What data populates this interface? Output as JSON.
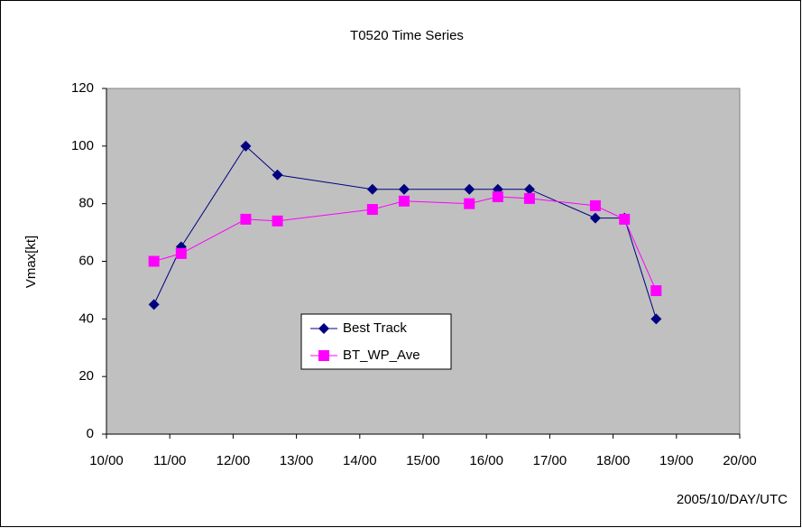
{
  "chart_data": {
    "type": "line",
    "title": "T0520 Time Series",
    "y_label": "Vmax[kt]",
    "x_label": "2005/10/DAY/UTC",
    "xlim": [
      10,
      20
    ],
    "xticks": [
      {
        "value": 10,
        "label": "10/00"
      },
      {
        "value": 11,
        "label": "11/00"
      },
      {
        "value": 12,
        "label": "12/00"
      },
      {
        "value": 13,
        "label": "13/00"
      },
      {
        "value": 14,
        "label": "14/00"
      },
      {
        "value": 15,
        "label": "15/00"
      },
      {
        "value": 16,
        "label": "16/00"
      },
      {
        "value": 17,
        "label": "17/00"
      },
      {
        "value": 18,
        "label": "18/00"
      },
      {
        "value": 19,
        "label": "19/00"
      },
      {
        "value": 20,
        "label": "20/00"
      }
    ],
    "ylim": [
      0,
      120
    ],
    "yticks": [
      0,
      20,
      40,
      60,
      80,
      100,
      120
    ],
    "grid": false,
    "x": [
      10.75,
      11.18,
      12.2,
      12.7,
      14.2,
      14.7,
      15.73,
      16.18,
      16.68,
      17.72,
      18.18,
      18.68
    ],
    "series": [
      {
        "name": "Best Track",
        "color": "#000080",
        "marker": "diamond",
        "values": [
          45,
          65,
          100,
          90,
          85,
          85,
          85,
          85,
          85,
          75,
          75,
          40
        ]
      },
      {
        "name": "BT_WP_Ave",
        "color": "#ff00ff",
        "marker": "square",
        "values": [
          60,
          62.7,
          74.6,
          74,
          78,
          80.9,
          80,
          82.4,
          81.8,
          79.3,
          74.6,
          49.8
        ]
      }
    ]
  }
}
